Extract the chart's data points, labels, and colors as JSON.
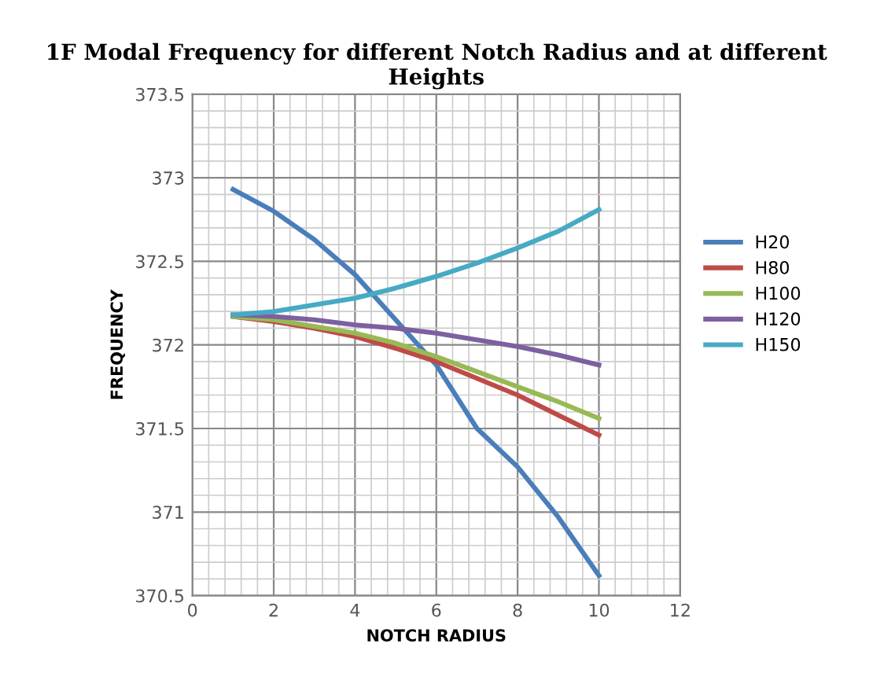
{
  "chart_data": {
    "type": "line",
    "title": "1F Modal Frequency for different Notch Radius and at different Heights",
    "xlabel": "NOTCH RADIUS",
    "ylabel": "FREQUENCY",
    "x": [
      1,
      2,
      3,
      4,
      5,
      6,
      7,
      8,
      9,
      10
    ],
    "series": [
      {
        "name": "H20",
        "color": "#4a7ebb",
        "values": [
          372.93,
          372.8,
          372.63,
          372.42,
          372.15,
          371.88,
          371.5,
          371.27,
          370.97,
          370.62
        ]
      },
      {
        "name": "H80",
        "color": "#be4b48",
        "values": [
          372.17,
          372.14,
          372.1,
          372.05,
          371.98,
          371.9,
          371.8,
          371.7,
          371.58,
          371.46
        ]
      },
      {
        "name": "H100",
        "color": "#98b954",
        "values": [
          372.17,
          372.15,
          372.11,
          372.07,
          372.01,
          371.93,
          371.84,
          371.75,
          371.66,
          371.56
        ]
      },
      {
        "name": "H120",
        "color": "#7d60a0",
        "values": [
          372.18,
          372.17,
          372.15,
          372.12,
          372.1,
          372.07,
          372.03,
          371.99,
          371.94,
          371.88
        ]
      },
      {
        "name": "H150",
        "color": "#46aac5",
        "values": [
          372.18,
          372.2,
          372.24,
          372.28,
          372.34,
          372.41,
          372.49,
          372.58,
          372.68,
          372.81
        ]
      }
    ],
    "xlim": [
      0,
      12
    ],
    "xticks": [
      0,
      2,
      4,
      6,
      8,
      10,
      12
    ],
    "ylim": [
      370.5,
      373.5
    ],
    "yticks": [
      370.5,
      371,
      371.5,
      372,
      372.5,
      373,
      373.5
    ],
    "grid": true,
    "legend": "right",
    "marker": "none",
    "line_style": "solid"
  }
}
